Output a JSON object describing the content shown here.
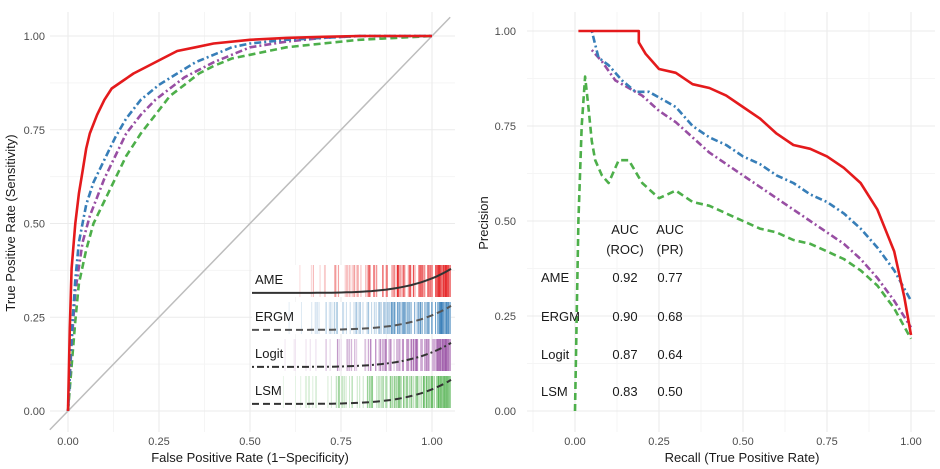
{
  "chart_data": [
    {
      "type": "line",
      "xlabel": "False Positive Rate (1−Specificity)",
      "ylabel": "True Positive Rate (Sensitivity)",
      "xlim": [
        0,
        1
      ],
      "ylim": [
        0,
        1
      ],
      "x_ticks": [
        "0.00",
        "0.25",
        "0.50",
        "0.75",
        "1.00"
      ],
      "y_ticks": [
        "0.00",
        "0.25",
        "0.50",
        "0.75",
        "1.00"
      ],
      "grid": true,
      "reference_line": "diagonal",
      "series": [
        {
          "name": "AME",
          "color": "#e41a1c",
          "style": "solid",
          "x": [
            0,
            0.005,
            0.01,
            0.02,
            0.03,
            0.04,
            0.05,
            0.06,
            0.08,
            0.1,
            0.12,
            0.15,
            0.18,
            0.22,
            0.26,
            0.3,
            0.35,
            0.4,
            0.5,
            0.6,
            0.7,
            0.8,
            1.0
          ],
          "y": [
            0,
            0.22,
            0.38,
            0.5,
            0.58,
            0.64,
            0.7,
            0.74,
            0.79,
            0.83,
            0.86,
            0.88,
            0.9,
            0.92,
            0.94,
            0.96,
            0.97,
            0.98,
            0.99,
            0.995,
            0.998,
            1.0,
            1.0
          ]
        },
        {
          "name": "ERGM",
          "color": "#377eb8",
          "style": "dotdash",
          "x": [
            0,
            0.01,
            0.02,
            0.03,
            0.05,
            0.07,
            0.1,
            0.13,
            0.16,
            0.2,
            0.25,
            0.3,
            0.35,
            0.4,
            0.45,
            0.5,
            0.6,
            0.7,
            0.8,
            0.9,
            1.0
          ],
          "y": [
            0,
            0.2,
            0.35,
            0.45,
            0.55,
            0.61,
            0.67,
            0.73,
            0.78,
            0.83,
            0.87,
            0.9,
            0.93,
            0.95,
            0.97,
            0.98,
            0.99,
            0.995,
            1.0,
            1.0,
            1.0
          ]
        },
        {
          "name": "Logit",
          "color": "#984ea3",
          "style": "dotdash",
          "x": [
            0,
            0.01,
            0.02,
            0.04,
            0.06,
            0.08,
            0.1,
            0.13,
            0.16,
            0.2,
            0.24,
            0.28,
            0.32,
            0.36,
            0.4,
            0.45,
            0.5,
            0.6,
            0.7,
            0.8,
            0.9,
            1.0
          ],
          "y": [
            0,
            0.18,
            0.32,
            0.45,
            0.52,
            0.57,
            0.62,
            0.68,
            0.74,
            0.79,
            0.83,
            0.86,
            0.89,
            0.91,
            0.93,
            0.95,
            0.97,
            0.985,
            0.995,
            1.0,
            1.0,
            1.0
          ]
        },
        {
          "name": "LSM",
          "color": "#4daf4a",
          "style": "dashed",
          "x": [
            0,
            0.01,
            0.02,
            0.03,
            0.05,
            0.07,
            0.1,
            0.13,
            0.16,
            0.2,
            0.24,
            0.28,
            0.32,
            0.36,
            0.4,
            0.45,
            0.5,
            0.55,
            0.6,
            0.7,
            0.8,
            0.9,
            1.0
          ],
          "y": [
            0,
            0.12,
            0.24,
            0.34,
            0.43,
            0.5,
            0.56,
            0.62,
            0.68,
            0.74,
            0.79,
            0.84,
            0.87,
            0.9,
            0.92,
            0.94,
            0.95,
            0.96,
            0.97,
            0.98,
            0.99,
            0.995,
            1.0
          ]
        }
      ],
      "inset_panels": [
        {
          "label": "AME",
          "color": "#e41a1c",
          "curve_style": "solid",
          "curve_color": "#333333"
        },
        {
          "label": "ERGM",
          "color": "#377eb8",
          "curve_style": "dashed",
          "curve_color": "#555555"
        },
        {
          "label": "Logit",
          "color": "#984ea3",
          "curve_style": "dotdash",
          "curve_color": "#333333"
        },
        {
          "label": "LSM",
          "color": "#4daf4a",
          "curve_style": "dashed",
          "curve_color": "#333333"
        }
      ]
    },
    {
      "type": "line",
      "xlabel": "Recall (True Positive Rate)",
      "ylabel": "Precision",
      "xlim": [
        -0.1,
        1.05
      ],
      "ylim": [
        0,
        1
      ],
      "x_ticks": [
        "0.00",
        "0.25",
        "0.50",
        "0.75",
        "1.00"
      ],
      "y_ticks": [
        "0.00",
        "0.25",
        "0.50",
        "0.75",
        "1.00"
      ],
      "grid": true,
      "series": [
        {
          "name": "AME",
          "color": "#e41a1c",
          "style": "solid",
          "x": [
            0.01,
            0.03,
            0.07,
            0.12,
            0.19,
            0.19,
            0.21,
            0.23,
            0.25,
            0.3,
            0.35,
            0.4,
            0.45,
            0.5,
            0.55,
            0.6,
            0.65,
            0.7,
            0.75,
            0.8,
            0.85,
            0.9,
            0.95,
            0.98,
            1.0
          ],
          "y": [
            1.0,
            1.0,
            1.0,
            1.0,
            1.0,
            0.97,
            0.94,
            0.92,
            0.9,
            0.89,
            0.86,
            0.85,
            0.83,
            0.8,
            0.77,
            0.73,
            0.7,
            0.69,
            0.67,
            0.64,
            0.6,
            0.53,
            0.42,
            0.3,
            0.2
          ]
        },
        {
          "name": "ERGM",
          "color": "#377eb8",
          "style": "dotdash",
          "x": [
            0.05,
            0.07,
            0.1,
            0.14,
            0.18,
            0.22,
            0.26,
            0.3,
            0.35,
            0.4,
            0.45,
            0.5,
            0.55,
            0.6,
            0.65,
            0.7,
            0.75,
            0.8,
            0.85,
            0.9,
            0.95,
            1.0
          ],
          "y": [
            1.0,
            0.93,
            0.91,
            0.87,
            0.84,
            0.84,
            0.82,
            0.8,
            0.75,
            0.72,
            0.7,
            0.67,
            0.65,
            0.62,
            0.6,
            0.57,
            0.55,
            0.52,
            0.48,
            0.43,
            0.37,
            0.29
          ]
        },
        {
          "name": "Logit",
          "color": "#984ea3",
          "style": "dotdash",
          "x": [
            0.05,
            0.08,
            0.12,
            0.16,
            0.2,
            0.25,
            0.3,
            0.35,
            0.4,
            0.45,
            0.5,
            0.55,
            0.6,
            0.65,
            0.7,
            0.75,
            0.8,
            0.85,
            0.9,
            0.95,
            1.0
          ],
          "y": [
            0.95,
            0.92,
            0.87,
            0.85,
            0.83,
            0.79,
            0.76,
            0.72,
            0.68,
            0.65,
            0.62,
            0.59,
            0.56,
            0.53,
            0.5,
            0.47,
            0.44,
            0.4,
            0.35,
            0.29,
            0.22
          ]
        },
        {
          "name": "LSM",
          "color": "#4daf4a",
          "style": "dashed",
          "x": [
            0.0,
            0.01,
            0.02,
            0.03,
            0.04,
            0.05,
            0.06,
            0.08,
            0.1,
            0.13,
            0.16,
            0.2,
            0.25,
            0.3,
            0.35,
            0.4,
            0.45,
            0.5,
            0.55,
            0.6,
            0.65,
            0.7,
            0.75,
            0.8,
            0.85,
            0.9,
            0.95,
            1.0
          ],
          "y": [
            0.0,
            0.5,
            0.75,
            0.88,
            0.8,
            0.71,
            0.66,
            0.62,
            0.6,
            0.66,
            0.66,
            0.6,
            0.56,
            0.58,
            0.55,
            0.54,
            0.52,
            0.5,
            0.48,
            0.47,
            0.45,
            0.44,
            0.42,
            0.4,
            0.37,
            0.33,
            0.27,
            0.19
          ]
        }
      ],
      "auc_table": {
        "headers": [
          "AUC\n(ROC)",
          "AUC\n(PR)"
        ],
        "header_line1": [
          "AUC",
          "AUC"
        ],
        "header_line2": [
          "(ROC)",
          "(PR)"
        ],
        "rows": [
          {
            "model": "AME",
            "roc": "0.92",
            "pr": "0.77"
          },
          {
            "model": "ERGM",
            "roc": "0.90",
            "pr": "0.68"
          },
          {
            "model": "Logit",
            "roc": "0.87",
            "pr": "0.64"
          },
          {
            "model": "LSM",
            "roc": "0.83",
            "pr": "0.50"
          }
        ]
      }
    }
  ]
}
